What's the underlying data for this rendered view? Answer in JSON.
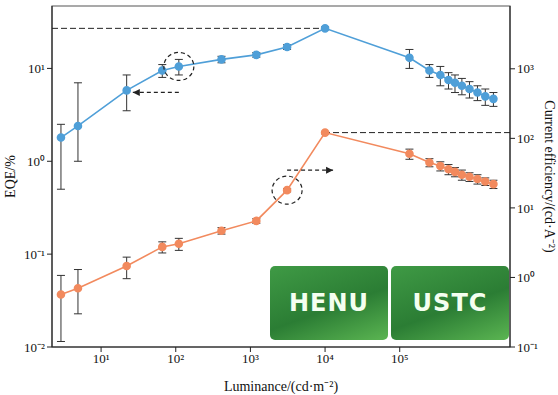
{
  "chart_data": {
    "type": "line",
    "x_label": "Luminance/(cd·m⁻²)",
    "y_label": "EQE/%",
    "y2_label": "Current efficiency/(cd·A⁻²)",
    "log": true,
    "grid": false,
    "x": [
      2.9,
      4.9,
      22,
      66,
      110,
      410,
      1200,
      3100,
      10000,
      135000,
      250000,
      350000,
      450000,
      550000,
      680000,
      860000,
      1100000,
      1400000,
      1800000
    ],
    "xlim": [
      2.2,
      3000000
    ],
    "xticks": [
      {
        "value": 10,
        "label": "10¹"
      },
      {
        "value": 100,
        "label": "10²"
      },
      {
        "value": 1000,
        "label": "10³"
      },
      {
        "value": 10000,
        "label": "10⁴"
      },
      {
        "value": 100000,
        "label": "10⁵"
      }
    ],
    "ylim": [
      0.01,
      47
    ],
    "yticks": [
      {
        "value": 0.01,
        "label": "10⁻²"
      },
      {
        "value": 0.1,
        "label": "10⁻¹"
      },
      {
        "value": 1,
        "label": "10⁰"
      },
      {
        "value": 10,
        "label": "10¹"
      }
    ],
    "y2lim": [
      0.1,
      8000
    ],
    "y2ticks": [
      {
        "value": 0.1,
        "label": "10⁻¹"
      },
      {
        "value": 1,
        "label": "10⁰"
      },
      {
        "value": 10,
        "label": "10¹"
      },
      {
        "value": 100,
        "label": "10²"
      },
      {
        "value": 1000,
        "label": "10³"
      }
    ],
    "series": [
      {
        "color": "#4f9fd8",
        "marker": "circle",
        "axis": "y",
        "values": [
          1.8,
          2.4,
          5.8,
          9.5,
          10.5,
          12.5,
          14,
          17,
          27,
          13,
          9.5,
          8.5,
          7.5,
          7,
          6.5,
          6,
          5.5,
          5,
          4.7
        ],
        "errors": [
          [
            1.3,
            0.7
          ],
          [
            1.4,
            4.6
          ],
          [
            2.3,
            2.7
          ],
          [
            1.5,
            1.5
          ],
          [
            2,
            2
          ],
          [
            1,
            1
          ],
          [
            0.8,
            0.8
          ],
          [
            1,
            1
          ],
          [
            1,
            1
          ],
          [
            3,
            3
          ],
          [
            1.5,
            1.5
          ],
          [
            2,
            2
          ],
          [
            1.5,
            1.5
          ],
          [
            1.5,
            1.5
          ],
          [
            1.3,
            1.3
          ],
          [
            1.2,
            1.2
          ],
          [
            1,
            1
          ],
          [
            1,
            1
          ],
          [
            0.8,
            0.8
          ]
        ]
      },
      {
        "color": "#f28a5e",
        "marker": "circle",
        "axis": "y2",
        "values": [
          0.57,
          0.7,
          1.46,
          2.75,
          3.05,
          4.7,
          6.5,
          18,
          121,
          60,
          45,
          40,
          36,
          33,
          30,
          28,
          26,
          24,
          22
        ],
        "errors": [
          [
            0.45,
            0.5
          ],
          [
            0.4,
            0.6
          ],
          [
            0.5,
            0.5
          ],
          [
            0.5,
            0.5
          ],
          [
            0.6,
            0.6
          ],
          [
            0.5,
            0.5
          ],
          [
            0.5,
            0.5
          ],
          [
            1,
            1
          ],
          [
            5,
            5
          ],
          [
            10,
            10
          ],
          [
            6,
            6
          ],
          [
            6,
            6
          ],
          [
            6,
            6
          ],
          [
            5,
            5
          ],
          [
            5,
            5
          ],
          [
            4,
            4
          ],
          [
            4,
            4
          ],
          [
            3,
            3
          ],
          [
            3,
            3
          ]
        ]
      }
    ],
    "inset_texts": [
      "HENU",
      "USTC"
    ]
  }
}
